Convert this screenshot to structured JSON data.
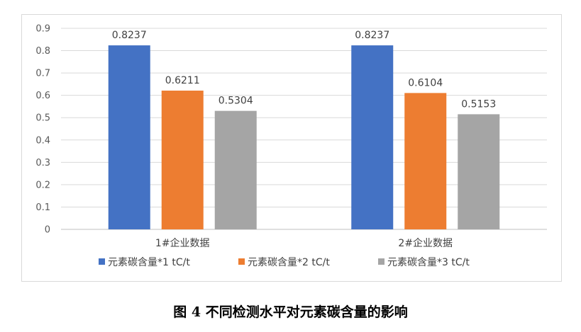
{
  "caption": "图 4  不同检测水平对元素碳含量的影响",
  "chart_data": {
    "type": "bar",
    "categories": [
      "1#企业数据",
      "2#企业数据"
    ],
    "series": [
      {
        "name": "元素碳含量*1 tC/t",
        "color": "#4472C4",
        "values": [
          0.8237,
          0.8237
        ],
        "labels": [
          "0.8237",
          "0.8237"
        ]
      },
      {
        "name": "元素碳含量*2 tC/t",
        "color": "#ED7D31",
        "values": [
          0.6211,
          0.6104
        ],
        "labels": [
          "0.6211",
          "0.6104"
        ]
      },
      {
        "name": "元素碳含量*3 tC/t",
        "color": "#A5A5A5",
        "values": [
          0.5304,
          0.5153
        ],
        "labels": [
          "0.5304",
          "0.5153"
        ]
      }
    ],
    "ylim": [
      0,
      0.9
    ],
    "yticks": [
      "0",
      "0.1",
      "0.2",
      "0.3",
      "0.4",
      "0.5",
      "0.6",
      "0.7",
      "0.8",
      "0.9"
    ],
    "grid": true,
    "legend_position": "bottom",
    "title": "",
    "xlabel": "",
    "ylabel": ""
  }
}
